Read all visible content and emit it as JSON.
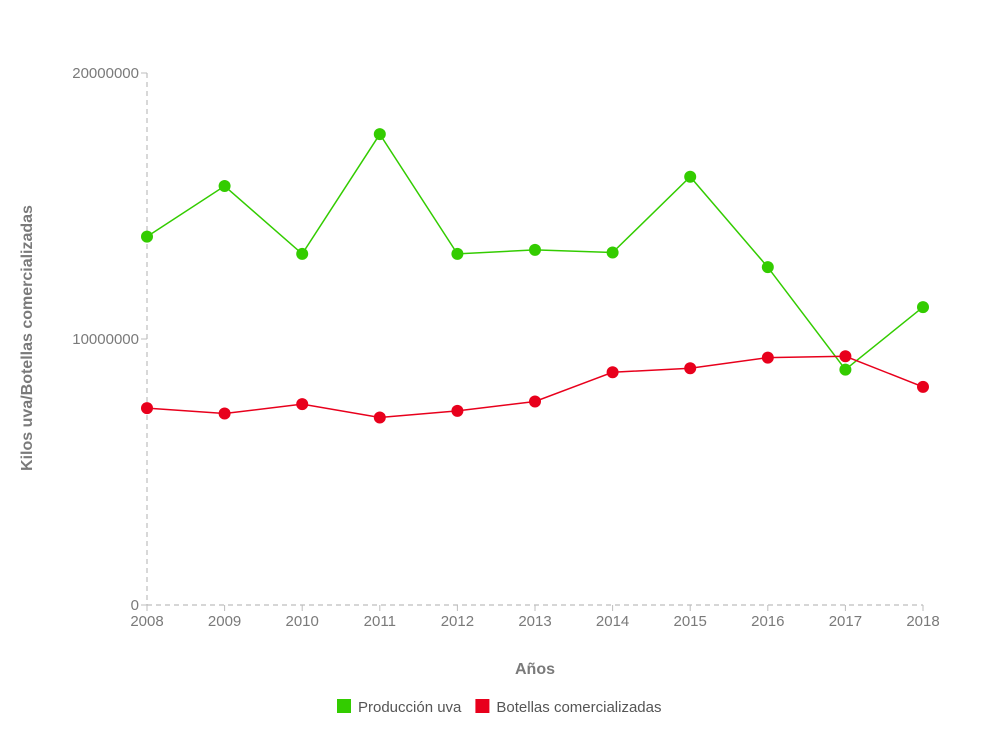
{
  "chart_data": {
    "type": "line",
    "xlabel": "Años",
    "ylabel": "Kilos uva/Botellas comercializadas",
    "x": [
      "2008",
      "2009",
      "2010",
      "2011",
      "2012",
      "2013",
      "2014",
      "2015",
      "2016",
      "2017",
      "2018"
    ],
    "ylim": [
      0,
      20000000
    ],
    "yticks": [
      "0",
      "10000000",
      "20000000"
    ],
    "grid": false,
    "legend_position": "bottom",
    "series": [
      {
        "name": "Producción uva",
        "color": "#33cc00",
        "values": [
          13850000,
          15750000,
          13200000,
          17700000,
          13200000,
          13350000,
          13250000,
          16100000,
          12700000,
          8850000,
          11200000
        ]
      },
      {
        "name": "Botellas comercializadas",
        "color": "#e8001c",
        "values": [
          7400000,
          7200000,
          7550000,
          7050000,
          7300000,
          7650000,
          8750000,
          8900000,
          9300000,
          9350000,
          8200000
        ]
      }
    ]
  }
}
